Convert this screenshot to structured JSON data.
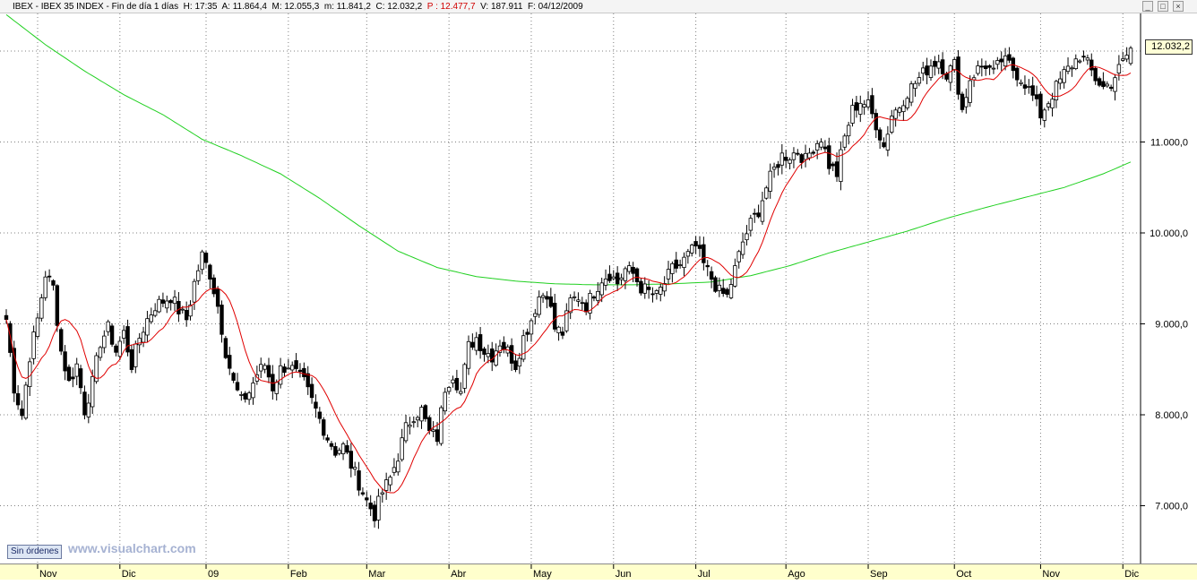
{
  "header": {
    "symbol": "IBEX",
    "name": "IBEX 35 INDEX",
    "period": "Fin de día 1 días",
    "hour_label": "H:",
    "hour": "17:35",
    "open_label": "A:",
    "open": "11.864,4",
    "high_label": "M:",
    "high": "12.055,3",
    "low_label": "m:",
    "low": "11.841,2",
    "close_label": "C:",
    "close": "12.032,2",
    "p_label": "P :",
    "p_value": "12.477,7",
    "volume_label": "V:",
    "volume": "187.911",
    "date_label": "F:",
    "date": "04/12/2009"
  },
  "window_buttons": {
    "minimize": "_",
    "maximize": "□",
    "close": "×"
  },
  "badge": "Sin órdenes",
  "watermark": "www.visualchart.com",
  "last_price_label": "12.032,2",
  "colors": {
    "candle_up": "#ffffff",
    "candle_down": "#000000",
    "ma_short": "#e00000",
    "ma_long": "#20d020",
    "axis_bg": "#ffffcc",
    "grid": "#808080"
  },
  "chart_data": {
    "type": "candlestick",
    "title": "IBEX 35 INDEX",
    "grid": true,
    "ylim": [
      6400,
      12600
    ],
    "y_ticks": [
      7000,
      8000,
      9000,
      10000,
      11000
    ],
    "y_tick_labels": [
      "7.000,0",
      "8.000,0",
      "9.000,0",
      "10.000,0",
      "11.000,0"
    ],
    "x_labels": [
      "Nov",
      "Dic",
      "09",
      "Feb",
      "Mar",
      "Abr",
      "May",
      "Jun",
      "Jul",
      "Ago",
      "Sep",
      "Oct",
      "Nov",
      "Dic"
    ],
    "x_label_index": [
      8,
      29,
      51,
      72,
      92,
      113,
      134,
      155,
      176,
      199,
      220,
      242,
      264,
      285
    ],
    "n_bars": 288,
    "close_anchors": [
      [
        0,
        9050
      ],
      [
        2,
        8300
      ],
      [
        4,
        8000
      ],
      [
        6,
        8650
      ],
      [
        8,
        9050
      ],
      [
        10,
        9550
      ],
      [
        12,
        9400
      ],
      [
        14,
        8700
      ],
      [
        16,
        8350
      ],
      [
        18,
        8550
      ],
      [
        20,
        8050
      ],
      [
        22,
        8350
      ],
      [
        24,
        8800
      ],
      [
        26,
        8950
      ],
      [
        28,
        8700
      ],
      [
        30,
        8900
      ],
      [
        32,
        8550
      ],
      [
        34,
        8850
      ],
      [
        36,
        9050
      ],
      [
        38,
        9200
      ],
      [
        40,
        9250
      ],
      [
        42,
        9300
      ],
      [
        44,
        9150
      ],
      [
        46,
        9050
      ],
      [
        48,
        9450
      ],
      [
        50,
        9750
      ],
      [
        52,
        9550
      ],
      [
        54,
        9200
      ],
      [
        56,
        8700
      ],
      [
        58,
        8350
      ],
      [
        60,
        8150
      ],
      [
        62,
        8250
      ],
      [
        64,
        8450
      ],
      [
        66,
        8550
      ],
      [
        68,
        8300
      ],
      [
        70,
        8500
      ],
      [
        72,
        8550
      ],
      [
        74,
        8450
      ],
      [
        76,
        8350
      ],
      [
        78,
        8150
      ],
      [
        80,
        7950
      ],
      [
        82,
        7750
      ],
      [
        84,
        7600
      ],
      [
        86,
        7650
      ],
      [
        88,
        7450
      ],
      [
        90,
        7250
      ],
      [
        92,
        7050
      ],
      [
        94,
        6900
      ],
      [
        96,
        7150
      ],
      [
        98,
        7300
      ],
      [
        100,
        7550
      ],
      [
        102,
        7850
      ],
      [
        104,
        8000
      ],
      [
        106,
        8050
      ],
      [
        108,
        7800
      ],
      [
        110,
        7750
      ],
      [
        112,
        8300
      ],
      [
        114,
        8450
      ],
      [
        116,
        8250
      ],
      [
        118,
        8750
      ],
      [
        120,
        8850
      ],
      [
        122,
        8700
      ],
      [
        124,
        8650
      ],
      [
        126,
        8800
      ],
      [
        128,
        8700
      ],
      [
        130,
        8550
      ],
      [
        132,
        8850
      ],
      [
        134,
        9050
      ],
      [
        136,
        9300
      ],
      [
        138,
        9350
      ],
      [
        140,
        8950
      ],
      [
        142,
        8900
      ],
      [
        144,
        9250
      ],
      [
        146,
        9300
      ],
      [
        148,
        9200
      ],
      [
        150,
        9350
      ],
      [
        152,
        9500
      ],
      [
        154,
        9550
      ],
      [
        156,
        9450
      ],
      [
        158,
        9600
      ],
      [
        160,
        9550
      ],
      [
        162,
        9400
      ],
      [
        164,
        9350
      ],
      [
        166,
        9300
      ],
      [
        168,
        9450
      ],
      [
        170,
        9600
      ],
      [
        172,
        9650
      ],
      [
        174,
        9750
      ],
      [
        176,
        9850
      ],
      [
        178,
        9650
      ],
      [
        180,
        9500
      ],
      [
        182,
        9350
      ],
      [
        184,
        9300
      ],
      [
        186,
        9600
      ],
      [
        188,
        9900
      ],
      [
        190,
        10100
      ],
      [
        192,
        10250
      ],
      [
        194,
        10500
      ],
      [
        196,
        10700
      ],
      [
        198,
        10850
      ],
      [
        200,
        10850
      ],
      [
        202,
        10900
      ],
      [
        204,
        10800
      ],
      [
        206,
        10950
      ],
      [
        208,
        11050
      ],
      [
        210,
        10750
      ],
      [
        212,
        10650
      ],
      [
        214,
        11050
      ],
      [
        216,
        11350
      ],
      [
        218,
        11450
      ],
      [
        220,
        11400
      ],
      [
        222,
        11200
      ],
      [
        224,
        10950
      ],
      [
        226,
        11300
      ],
      [
        228,
        11400
      ],
      [
        230,
        11550
      ],
      [
        232,
        11650
      ],
      [
        234,
        11750
      ],
      [
        236,
        11850
      ],
      [
        238,
        11900
      ],
      [
        240,
        11750
      ],
      [
        242,
        11850
      ],
      [
        244,
        11350
      ],
      [
        246,
        11700
      ],
      [
        248,
        11800
      ],
      [
        250,
        11850
      ],
      [
        252,
        11750
      ],
      [
        254,
        11900
      ],
      [
        256,
        11850
      ],
      [
        258,
        11750
      ],
      [
        260,
        11650
      ],
      [
        262,
        11500
      ],
      [
        264,
        11300
      ],
      [
        266,
        11450
      ],
      [
        268,
        11600
      ],
      [
        270,
        11750
      ],
      [
        272,
        11850
      ],
      [
        274,
        11950
      ],
      [
        276,
        11850
      ],
      [
        278,
        11700
      ],
      [
        280,
        11600
      ],
      [
        282,
        11650
      ],
      [
        284,
        11800
      ],
      [
        286,
        11950
      ],
      [
        287,
        12032
      ]
    ],
    "ma_short": {
      "period": 10,
      "color": "#e00000"
    },
    "ma_long": {
      "color": "#20d020",
      "anchors": [
        [
          0,
          12400
        ],
        [
          10,
          12070
        ],
        [
          20,
          11780
        ],
        [
          30,
          11520
        ],
        [
          40,
          11300
        ],
        [
          50,
          11030
        ],
        [
          60,
          10850
        ],
        [
          70,
          10650
        ],
        [
          80,
          10380
        ],
        [
          90,
          10080
        ],
        [
          100,
          9800
        ],
        [
          110,
          9620
        ],
        [
          120,
          9520
        ],
        [
          130,
          9470
        ],
        [
          140,
          9440
        ],
        [
          150,
          9430
        ],
        [
          160,
          9430
        ],
        [
          170,
          9440
        ],
        [
          180,
          9460
        ],
        [
          190,
          9530
        ],
        [
          200,
          9640
        ],
        [
          210,
          9780
        ],
        [
          220,
          9900
        ],
        [
          230,
          10020
        ],
        [
          240,
          10160
        ],
        [
          250,
          10280
        ],
        [
          260,
          10390
        ],
        [
          270,
          10500
        ],
        [
          280,
          10650
        ],
        [
          287,
          10780
        ]
      ]
    }
  }
}
